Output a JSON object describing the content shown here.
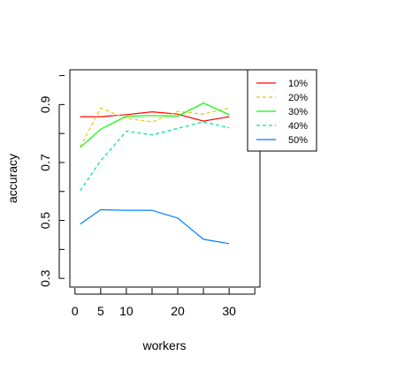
{
  "chart_data": {
    "type": "line",
    "title": "",
    "xlabel": "workers",
    "ylabel": "accuracy",
    "xlim": [
      -1,
      36
    ],
    "ylim": [
      0.27,
      1.02
    ],
    "xticks": [
      0,
      5,
      10,
      20,
      30
    ],
    "yticks": [
      0.3,
      0.5,
      0.7,
      0.9
    ],
    "grid": false,
    "legend_position": "top-right",
    "x": [
      1,
      5,
      10,
      15,
      20,
      25,
      30
    ],
    "series": [
      {
        "name": "10%",
        "color": "#ff0000",
        "dash": "solid",
        "values": [
          0.858,
          0.858,
          0.865,
          0.875,
          0.867,
          0.843,
          0.858
        ]
      },
      {
        "name": "20%",
        "color": "#e6c800",
        "dash": "dashed",
        "values": [
          0.753,
          0.888,
          0.852,
          0.84,
          0.876,
          0.867,
          0.888
        ]
      },
      {
        "name": "30%",
        "color": "#00ff00",
        "dash": "solid",
        "values": [
          0.752,
          0.815,
          0.86,
          0.862,
          0.86,
          0.905,
          0.865
        ]
      },
      {
        "name": "40%",
        "color": "#00e68c",
        "dash": "dashed",
        "values": [
          0.603,
          0.706,
          0.808,
          0.795,
          0.818,
          0.84,
          0.82
        ]
      },
      {
        "name": "50%",
        "color": "#0080ff",
        "dash": "solid",
        "values": [
          0.487,
          0.537,
          0.535,
          0.535,
          0.508,
          0.435,
          0.42
        ]
      }
    ]
  }
}
